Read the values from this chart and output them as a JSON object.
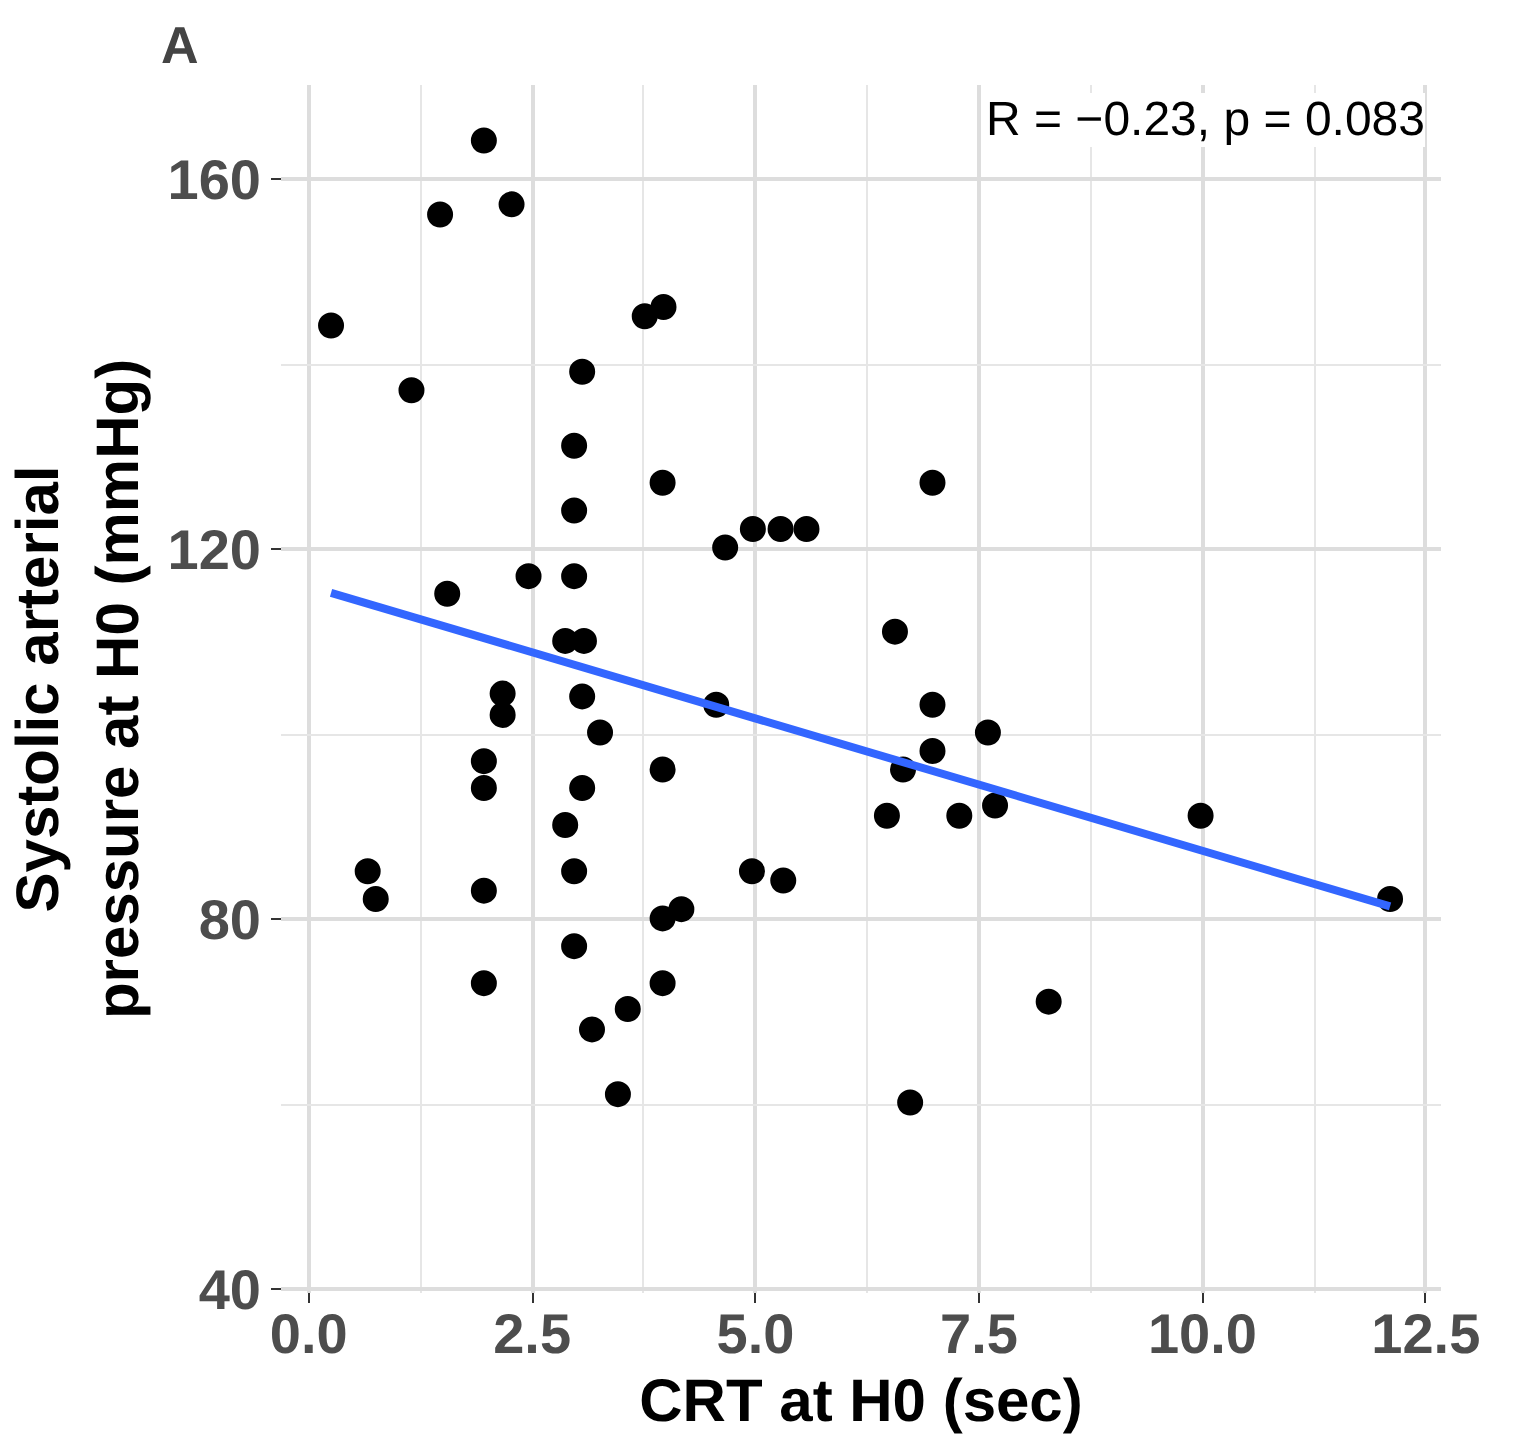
{
  "chart_data": {
    "type": "scatter",
    "xlabel": "CRT at H0 (sec)",
    "ylabel": "Systolic arterial\npressure at H0 (mmHg)",
    "annotations": [
      "A",
      "R = −0.23, p = 0.083"
    ],
    "xlim": [
      -0.31,
      12.67
    ],
    "ylim": [
      39.6,
      170.2
    ],
    "xticks": [
      {
        "value": 0,
        "label": "0.0"
      },
      {
        "value": 2.5,
        "label": "2.5"
      },
      {
        "value": 5,
        "label": "5.0"
      },
      {
        "value": 7.5,
        "label": "7.5"
      },
      {
        "value": 10,
        "label": "10.0"
      },
      {
        "value": 12.5,
        "label": "12.5"
      }
    ],
    "yticks": [
      40,
      80,
      120,
      160
    ],
    "grid": true,
    "series": [
      {
        "color": "#000000",
        "marker": "circle",
        "x": [
          1.96,
          1.47,
          2.27,
          0.25,
          3.76,
          3.97,
          3.06,
          1.15,
          2.97,
          3.96,
          2.97,
          4.66,
          4.97,
          5.28,
          5.57,
          1.55,
          2.46,
          2.97,
          2.87,
          3.08,
          2.17,
          2.17,
          3.06,
          6.56,
          4.56,
          3.26,
          1.96,
          1.96,
          3.96,
          3.06,
          2.87,
          6.47,
          0.66,
          0.75,
          1.96,
          2.97,
          4.96,
          5.31,
          3.96,
          4.17,
          2.97,
          1.96,
          3.96,
          3.57,
          3.17,
          3.46,
          6.73,
          6.98,
          7.6,
          6.98,
          6.65,
          7.28,
          7.68,
          9.98,
          12.1,
          8.28,
          6.98
        ],
        "values": [
          164.2,
          156.2,
          157.3,
          144.2,
          145.2,
          146.2,
          139.2,
          137.2,
          131.2,
          127.2,
          124.2,
          120.2,
          122.2,
          122.2,
          122.2,
          115.2,
          117.1,
          117.1,
          110.1,
          110.1,
          104.4,
          102.1,
          104.1,
          111.1,
          103.2,
          100.2,
          97.1,
          94.2,
          96.2,
          94.2,
          90.2,
          91.2,
          85.2,
          82.2,
          83.1,
          85.2,
          85.2,
          84.2,
          80.1,
          81.1,
          77.1,
          73.1,
          73.1,
          70.3,
          68.1,
          61.1,
          60.2,
          103.2,
          100.2,
          98.2,
          96.2,
          91.2,
          92.3,
          91.2,
          82.2,
          71.1,
          127.2
        ]
      },
      {
        "type": "line",
        "color": "#3366ff",
        "x": [
          0.25,
          12.1
        ],
        "values": [
          115.3,
          81.4
        ]
      }
    ]
  }
}
